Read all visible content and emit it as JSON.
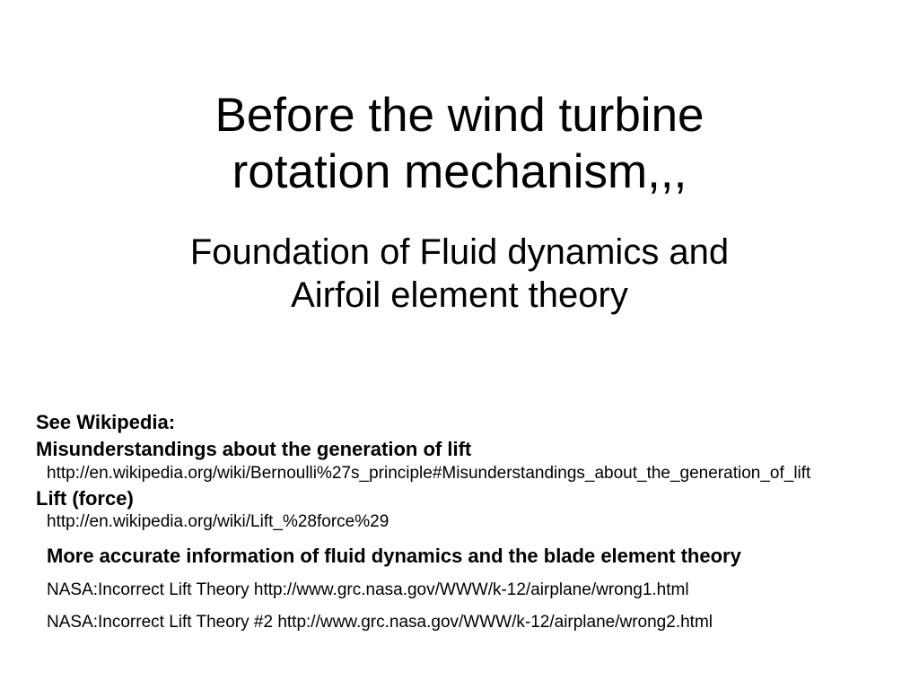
{
  "title_line1": "Before the wind turbine",
  "title_line2": "rotation mechanism,,,",
  "subtitle_line1": "Foundation of Fluid dynamics and",
  "subtitle_line2": "Airfoil element theory",
  "refs": {
    "see_wiki": "See   Wikipedia:",
    "misunderstanding": "Misunderstandings about the generation of lift",
    "bernoulli_url": "http://en.wikipedia.org/wiki/Bernoulli%27s_principle#Misunderstandings_about_the_generation_of_lift",
    "lift_force": "Lift (force)",
    "lift_url": "http://en.wikipedia.org/wiki/Lift_%28force%29",
    "more_info": "More accurate information of fluid dynamics and the blade element theory",
    "nasa1": "NASA:Incorrect Lift Theory    http://www.grc.nasa.gov/WWW/k-12/airplane/wrong1.html",
    "nasa2": "NASA:Incorrect Lift Theory #2    http://www.grc.nasa.gov/WWW/k-12/airplane/wrong2.html"
  },
  "colors": {
    "background": "#ffffff",
    "text": "#000000"
  },
  "typography": {
    "title_fontsize": 53,
    "subtitle_fontsize": 40,
    "ref_bold_fontsize": 22,
    "ref_link_fontsize": 19,
    "font_family": "Arial"
  }
}
